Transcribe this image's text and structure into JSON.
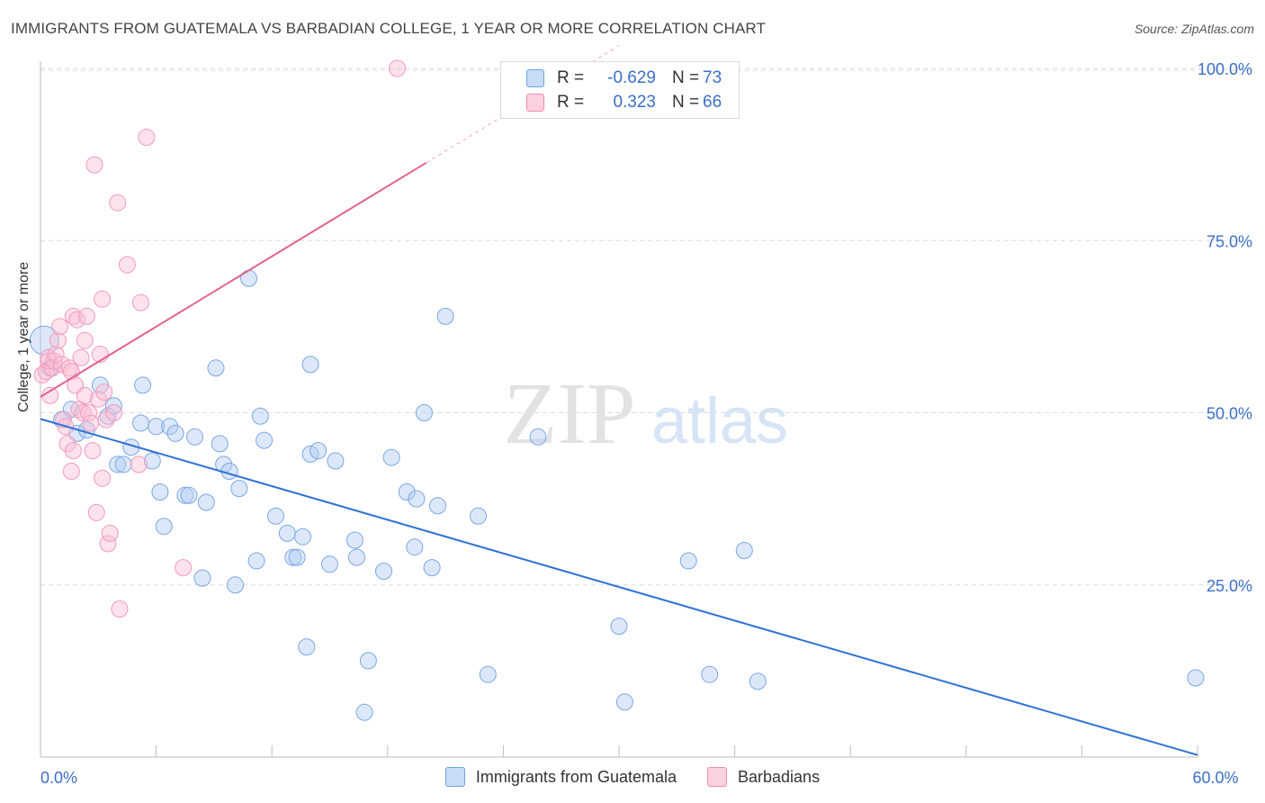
{
  "title": "IMMIGRANTS FROM GUATEMALA VS BARBADIAN COLLEGE, 1 YEAR OR MORE CORRELATION CHART",
  "source": "Source: ZipAtlas.com",
  "watermark": {
    "zip": "ZIP",
    "atlas": "atlas"
  },
  "colors": {
    "blue": "#6fa0e6",
    "blue_line": "#2f72d6",
    "pink": "#f08db0",
    "pink_line": "#e3628e",
    "axis_label": "#3a6fc9"
  },
  "legend": [
    {
      "r_label": "R =",
      "r_value": "-0.629",
      "n_label": "N =",
      "n_value": "73",
      "series": "blue"
    },
    {
      "r_label": "R =",
      "r_value": "0.323",
      "n_label": "N =",
      "n_value": "66",
      "series": "pink"
    }
  ],
  "chart_data": {
    "type": "scatter",
    "title": "IMMIGRANTS FROM GUATEMALA VS BARBADIAN COLLEGE, 1 YEAR OR MORE CORRELATION CHART",
    "xlabel": "",
    "ylabel": "College, 1 year or more",
    "xlim": [
      0,
      60
    ],
    "ylim": [
      0,
      105
    ],
    "x_ticks": [
      0,
      6,
      12,
      18,
      24,
      30,
      36,
      42,
      48,
      54,
      60
    ],
    "x_tick_labels": [
      {
        "value": 0,
        "label": "0.0%"
      },
      {
        "value": 60,
        "label": "60.0%"
      }
    ],
    "y_ticks": [
      25,
      50,
      75,
      100
    ],
    "y_tick_labels": [
      "25.0%",
      "50.0%",
      "75.0%",
      "100.0%"
    ],
    "grid": true,
    "series": [
      {
        "name": "Immigrants from Guatemala",
        "color": "#6fa0e6",
        "trend": {
          "x": [
            0,
            60
          ],
          "y": [
            49.1,
            0.3
          ]
        },
        "points": [
          [
            0.2,
            60.5
          ],
          [
            0.5,
            56.5
          ],
          [
            1.1,
            49.0
          ],
          [
            1.6,
            50.5
          ],
          [
            1.9,
            47.0
          ],
          [
            2.4,
            47.5
          ],
          [
            3.1,
            54.0
          ],
          [
            3.5,
            49.5
          ],
          [
            3.8,
            51.0
          ],
          [
            4.0,
            42.5
          ],
          [
            4.3,
            42.5
          ],
          [
            4.7,
            45.0
          ],
          [
            5.2,
            48.5
          ],
          [
            5.3,
            54.0
          ],
          [
            5.8,
            43.0
          ],
          [
            6.0,
            48.0
          ],
          [
            6.2,
            38.5
          ],
          [
            6.4,
            33.5
          ],
          [
            6.7,
            48.0
          ],
          [
            7.0,
            47.0
          ],
          [
            7.5,
            38.0
          ],
          [
            7.7,
            38.0
          ],
          [
            8.0,
            46.5
          ],
          [
            8.4,
            26.0
          ],
          [
            8.6,
            37.0
          ],
          [
            9.1,
            56.5
          ],
          [
            9.3,
            45.5
          ],
          [
            9.5,
            42.5
          ],
          [
            9.8,
            41.5
          ],
          [
            10.1,
            25.0
          ],
          [
            10.3,
            39.0
          ],
          [
            10.8,
            69.5
          ],
          [
            11.2,
            28.5
          ],
          [
            11.4,
            49.5
          ],
          [
            11.6,
            46.0
          ],
          [
            12.2,
            35.0
          ],
          [
            12.8,
            32.5
          ],
          [
            13.1,
            29.0
          ],
          [
            13.3,
            29.0
          ],
          [
            13.6,
            32.0
          ],
          [
            13.8,
            16.0
          ],
          [
            14.0,
            57.0
          ],
          [
            14.0,
            44.0
          ],
          [
            14.4,
            44.5
          ],
          [
            15.0,
            28.0
          ],
          [
            15.3,
            43.0
          ],
          [
            16.3,
            31.5
          ],
          [
            16.4,
            29.0
          ],
          [
            16.8,
            6.5
          ],
          [
            17.0,
            14.0
          ],
          [
            17.8,
            27.0
          ],
          [
            18.2,
            43.5
          ],
          [
            19.0,
            38.5
          ],
          [
            19.4,
            30.5
          ],
          [
            19.5,
            37.5
          ],
          [
            19.9,
            50.0
          ],
          [
            20.3,
            27.5
          ],
          [
            20.6,
            36.5
          ],
          [
            21.0,
            64.0
          ],
          [
            22.7,
            35.0
          ],
          [
            23.2,
            12.0
          ],
          [
            25.8,
            46.5
          ],
          [
            30.0,
            19.0
          ],
          [
            30.3,
            8.0
          ],
          [
            33.6,
            28.5
          ],
          [
            34.7,
            12.0
          ],
          [
            36.5,
            30.0
          ],
          [
            37.2,
            11.0
          ],
          [
            59.9,
            11.5
          ]
        ]
      },
      {
        "name": "Barbadians",
        "color": "#f08db0",
        "trend": {
          "x": [
            0,
            20
          ],
          "y": [
            52.3,
            86.3
          ]
        },
        "trend_dash_x": [
          20,
          30
        ],
        "points": [
          [
            0.1,
            55.5
          ],
          [
            0.3,
            56.0
          ],
          [
            0.4,
            57.5
          ],
          [
            0.4,
            58.0
          ],
          [
            0.5,
            52.5
          ],
          [
            0.6,
            56.5
          ],
          [
            0.7,
            57.5
          ],
          [
            0.8,
            58.5
          ],
          [
            0.9,
            60.5
          ],
          [
            1.0,
            62.5
          ],
          [
            1.1,
            57.0
          ],
          [
            1.2,
            49.0
          ],
          [
            1.3,
            48.0
          ],
          [
            1.4,
            45.5
          ],
          [
            1.5,
            56.5
          ],
          [
            1.6,
            56.0
          ],
          [
            1.6,
            41.5
          ],
          [
            1.7,
            44.5
          ],
          [
            1.7,
            64.0
          ],
          [
            1.8,
            54.0
          ],
          [
            1.9,
            63.5
          ],
          [
            2.0,
            50.5
          ],
          [
            2.1,
            58.0
          ],
          [
            2.2,
            50.0
          ],
          [
            2.3,
            52.5
          ],
          [
            2.3,
            60.5
          ],
          [
            2.4,
            64.0
          ],
          [
            2.5,
            50.0
          ],
          [
            2.6,
            48.5
          ],
          [
            2.7,
            44.5
          ],
          [
            2.8,
            86.0
          ],
          [
            2.9,
            35.5
          ],
          [
            3.0,
            52.0
          ],
          [
            3.1,
            58.5
          ],
          [
            3.2,
            66.5
          ],
          [
            3.2,
            40.5
          ],
          [
            3.3,
            53.0
          ],
          [
            3.4,
            49.0
          ],
          [
            3.5,
            31.0
          ],
          [
            3.6,
            32.5
          ],
          [
            3.8,
            50.0
          ],
          [
            4.0,
            80.5
          ],
          [
            4.1,
            21.5
          ],
          [
            4.5,
            71.5
          ],
          [
            5.1,
            42.5
          ],
          [
            5.2,
            66.0
          ],
          [
            5.5,
            90.0
          ],
          [
            7.4,
            27.5
          ],
          [
            18.5,
            100.0
          ]
        ]
      }
    ],
    "legend_position": "top-center"
  }
}
